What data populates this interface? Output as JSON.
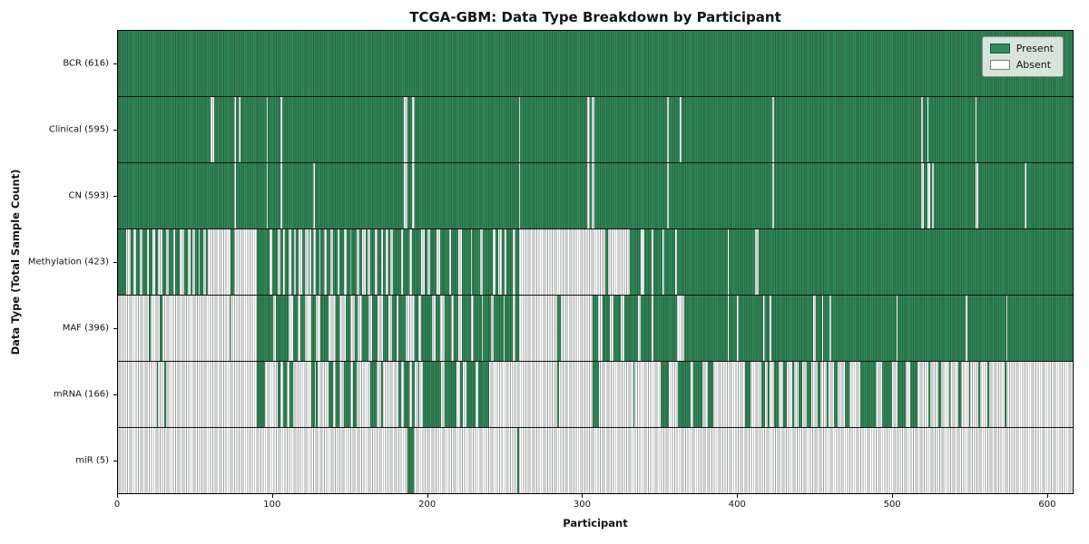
{
  "title": "TCGA-GBM: Data Type Breakdown by Participant",
  "colors": {
    "present": "#2e8b57",
    "absent": "#ffffff"
  },
  "chart_data": {
    "type": "heatmap",
    "title": "TCGA-GBM: Data Type Breakdown by Participant",
    "xlabel": "Participant",
    "ylabel": "Data Type (Total Sample Count)",
    "n_participants": 616,
    "xlim": [
      0,
      617
    ],
    "xticks": [
      0,
      100,
      200,
      300,
      400,
      500,
      600
    ],
    "grid": false,
    "legend_position": "upper right",
    "legend": [
      {
        "key": "present",
        "label": "Present",
        "color": "#2e8b57"
      },
      {
        "key": "absent",
        "label": "Absent",
        "color": "#ffffff"
      }
    ],
    "rows": [
      {
        "key": "bcr",
        "name": "BCR",
        "total_samples": 616,
        "label": "BCR (616)",
        "mode": "absent_runs",
        "runs": []
      },
      {
        "key": "clinical",
        "name": "Clinical",
        "total_samples": 595,
        "label": "Clinical (595)",
        "mode": "absent_runs",
        "runs": [
          [
            60,
            2
          ],
          [
            75,
            1
          ],
          [
            78,
            1
          ],
          [
            96,
            1
          ],
          [
            105,
            1
          ],
          [
            185,
            2
          ],
          [
            190,
            2
          ],
          [
            259,
            1
          ],
          [
            303,
            2
          ],
          [
            306,
            2
          ],
          [
            355,
            1
          ],
          [
            363,
            1
          ],
          [
            423,
            1
          ],
          [
            519,
            1
          ],
          [
            523,
            1
          ],
          [
            554,
            1
          ]
        ]
      },
      {
        "key": "cn",
        "name": "CN",
        "total_samples": 593,
        "label": "CN (593)",
        "mode": "absent_runs",
        "runs": [
          [
            75,
            1
          ],
          [
            96,
            1
          ],
          [
            105,
            1
          ],
          [
            126,
            1
          ],
          [
            185,
            2
          ],
          [
            190,
            2
          ],
          [
            259,
            1
          ],
          [
            303,
            2
          ],
          [
            306,
            2
          ],
          [
            355,
            1
          ],
          [
            423,
            1
          ],
          [
            519,
            2
          ],
          [
            523,
            2
          ],
          [
            526,
            1
          ],
          [
            554,
            2
          ],
          [
            586,
            1
          ]
        ]
      },
      {
        "key": "methylation",
        "name": "Methylation",
        "total_samples": 423,
        "label": "Methylation (423)",
        "mode": "absent_runs",
        "runs": [
          [
            5,
            3
          ],
          [
            10,
            2
          ],
          [
            14,
            2
          ],
          [
            19,
            1
          ],
          [
            22,
            2
          ],
          [
            26,
            3
          ],
          [
            31,
            2
          ],
          [
            36,
            1
          ],
          [
            40,
            3
          ],
          [
            45,
            2
          ],
          [
            48,
            2
          ],
          [
            52,
            1
          ],
          [
            55,
            2
          ],
          [
            58,
            2
          ],
          [
            60,
            13
          ],
          [
            75,
            15
          ],
          [
            98,
            2
          ],
          [
            103,
            2
          ],
          [
            107,
            1
          ],
          [
            110,
            2
          ],
          [
            114,
            1
          ],
          [
            117,
            2
          ],
          [
            121,
            2
          ],
          [
            124,
            1
          ],
          [
            126,
            2
          ],
          [
            130,
            1
          ],
          [
            133,
            2
          ],
          [
            137,
            2
          ],
          [
            142,
            1
          ],
          [
            146,
            2
          ],
          [
            150,
            1
          ],
          [
            154,
            2
          ],
          [
            158,
            2
          ],
          [
            161,
            2
          ],
          [
            166,
            2
          ],
          [
            170,
            1
          ],
          [
            173,
            2
          ],
          [
            176,
            2
          ],
          [
            183,
            1
          ],
          [
            188,
            2
          ],
          [
            196,
            2
          ],
          [
            200,
            2
          ],
          [
            206,
            2
          ],
          [
            214,
            1
          ],
          [
            220,
            2
          ],
          [
            228,
            1
          ],
          [
            234,
            2
          ],
          [
            242,
            2
          ],
          [
            246,
            2
          ],
          [
            250,
            1
          ],
          [
            255,
            2
          ],
          [
            259,
            56
          ],
          [
            317,
            14
          ],
          [
            338,
            2
          ],
          [
            345,
            1
          ],
          [
            352,
            1
          ],
          [
            360,
            1
          ],
          [
            394,
            1
          ],
          [
            412,
            2
          ]
        ]
      },
      {
        "key": "maf",
        "name": "MAF",
        "total_samples": 396,
        "label": "MAF (396)",
        "mode": "absent_runs",
        "runs": [
          [
            0,
            20
          ],
          [
            21,
            6
          ],
          [
            29,
            43
          ],
          [
            73,
            17
          ],
          [
            100,
            2
          ],
          [
            110,
            3
          ],
          [
            116,
            2
          ],
          [
            121,
            4
          ],
          [
            128,
            3
          ],
          [
            136,
            5
          ],
          [
            143,
            4
          ],
          [
            150,
            3
          ],
          [
            155,
            3
          ],
          [
            162,
            2
          ],
          [
            168,
            3
          ],
          [
            175,
            2
          ],
          [
            180,
            1
          ],
          [
            186,
            6
          ],
          [
            194,
            2
          ],
          [
            203,
            2
          ],
          [
            208,
            3
          ],
          [
            215,
            2
          ],
          [
            220,
            2
          ],
          [
            228,
            2
          ],
          [
            235,
            1
          ],
          [
            241,
            2
          ],
          [
            249,
            1
          ],
          [
            255,
            2
          ],
          [
            259,
            25
          ],
          [
            286,
            21
          ],
          [
            310,
            3
          ],
          [
            318,
            2
          ],
          [
            325,
            2
          ],
          [
            336,
            2
          ],
          [
            345,
            1
          ],
          [
            361,
            5
          ],
          [
            394,
            1
          ],
          [
            400,
            1
          ],
          [
            417,
            1
          ],
          [
            421,
            1
          ],
          [
            449,
            2
          ],
          [
            455,
            1
          ],
          [
            460,
            1
          ],
          [
            503,
            1
          ],
          [
            548,
            1
          ],
          [
            574,
            1
          ]
        ]
      },
      {
        "key": "mrna",
        "name": "mRNA",
        "total_samples": 166,
        "label": "mRNA (166)",
        "mode": "present_runs",
        "runs": [
          [
            25,
            1
          ],
          [
            30,
            1
          ],
          [
            90,
            5
          ],
          [
            103,
            2
          ],
          [
            107,
            2
          ],
          [
            111,
            2
          ],
          [
            125,
            2
          ],
          [
            128,
            1
          ],
          [
            136,
            3
          ],
          [
            141,
            2
          ],
          [
            146,
            4
          ],
          [
            152,
            2
          ],
          [
            163,
            4
          ],
          [
            170,
            1
          ],
          [
            181,
            2
          ],
          [
            185,
            3
          ],
          [
            190,
            2
          ],
          [
            194,
            1
          ],
          [
            197,
            12
          ],
          [
            211,
            8
          ],
          [
            221,
            2
          ],
          [
            225,
            6
          ],
          [
            233,
            7
          ],
          [
            284,
            1
          ],
          [
            307,
            4
          ],
          [
            333,
            1
          ],
          [
            351,
            5
          ],
          [
            362,
            8
          ],
          [
            372,
            6
          ],
          [
            381,
            4
          ],
          [
            405,
            4
          ],
          [
            416,
            2
          ],
          [
            420,
            1
          ],
          [
            424,
            3
          ],
          [
            430,
            2
          ],
          [
            436,
            1
          ],
          [
            440,
            2
          ],
          [
            445,
            3
          ],
          [
            452,
            2
          ],
          [
            458,
            1
          ],
          [
            463,
            2
          ],
          [
            470,
            3
          ],
          [
            480,
            10
          ],
          [
            494,
            6
          ],
          [
            504,
            5
          ],
          [
            512,
            5
          ],
          [
            524,
            1
          ],
          [
            530,
            2
          ],
          [
            537,
            1
          ],
          [
            543,
            2
          ],
          [
            550,
            1
          ],
          [
            556,
            1
          ],
          [
            562,
            1
          ],
          [
            573,
            1
          ]
        ]
      },
      {
        "key": "mir",
        "name": "miR",
        "total_samples": 5,
        "label": "miR (5)",
        "mode": "present_runs",
        "runs": [
          [
            187,
            4
          ],
          [
            258,
            1
          ]
        ]
      }
    ]
  }
}
